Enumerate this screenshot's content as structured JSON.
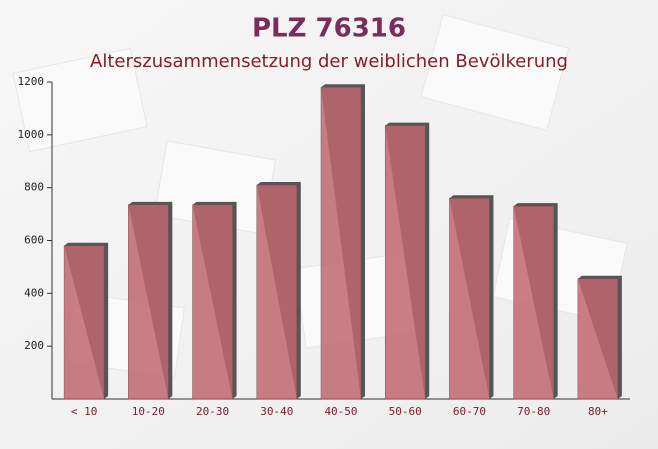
{
  "chart_data": {
    "type": "bar",
    "title": "PLZ 76316",
    "subtitle": "Alterszusammensetzung der weiblichen Bevölkerung",
    "categories": [
      "< 10",
      "10-20",
      "20-30",
      "30-40",
      "40-50",
      "50-60",
      "60-70",
      "70-80",
      "80+"
    ],
    "values": [
      580,
      735,
      735,
      810,
      1180,
      1035,
      760,
      730,
      455
    ],
    "color": "#c0666e",
    "ylim": [
      0,
      1200
    ],
    "yticks": [
      200,
      400,
      600,
      800,
      1000,
      1200
    ]
  }
}
